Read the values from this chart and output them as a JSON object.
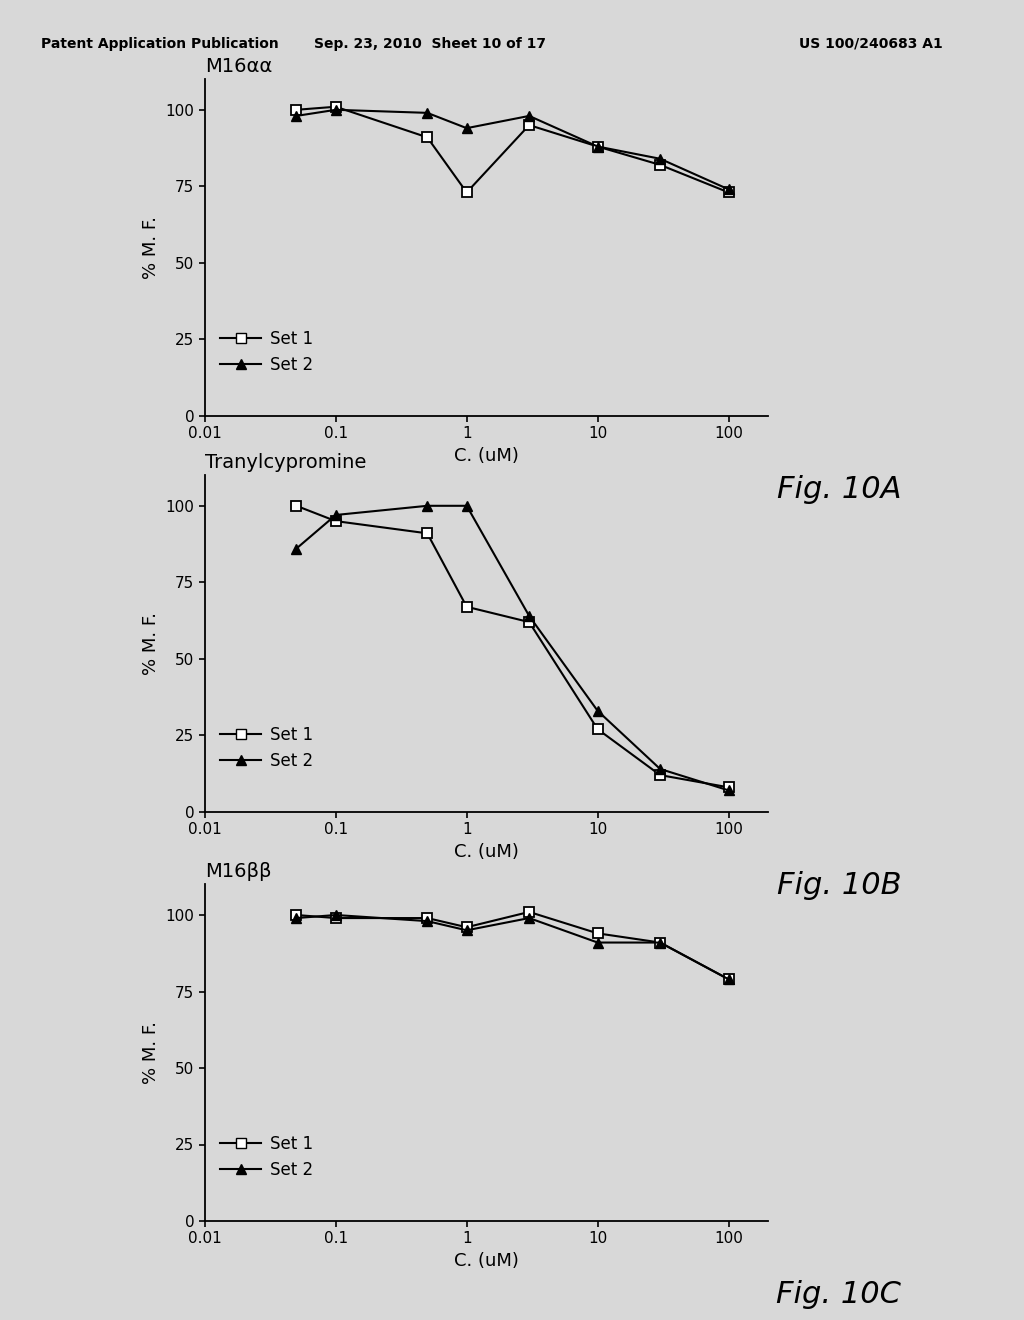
{
  "background_color": "#d8d8d8",
  "chartA": {
    "title": "M16αα",
    "xlabel": "C. (uM)",
    "ylabel": "% M. F.",
    "fig_label": "Fig. 10A",
    "xlim": [
      0.01,
      200
    ],
    "ylim": [
      0,
      110
    ],
    "yticks": [
      0,
      25,
      50,
      75,
      100
    ],
    "xtick_labels": [
      "0.01",
      "0.1",
      "1",
      "10",
      "100"
    ],
    "xtick_vals": [
      0.01,
      0.1,
      1,
      10,
      100
    ],
    "set1_x": [
      0.05,
      0.1,
      0.5,
      1,
      3,
      10,
      30,
      100
    ],
    "set1_y": [
      100,
      101,
      91,
      73,
      95,
      88,
      82,
      73
    ],
    "set2_x": [
      0.05,
      0.1,
      0.5,
      1,
      3,
      10,
      30,
      100
    ],
    "set2_y": [
      98,
      100,
      99,
      94,
      98,
      88,
      84,
      74
    ]
  },
  "chartB": {
    "title": "Tranylcypromine",
    "xlabel": "C. (uM)",
    "ylabel": "% M. F.",
    "fig_label": "Fig. 10B",
    "xlim": [
      0.01,
      200
    ],
    "ylim": [
      0,
      110
    ],
    "yticks": [
      0,
      25,
      50,
      75,
      100
    ],
    "xtick_labels": [
      "0.01",
      "0.1",
      "1",
      "10",
      "100"
    ],
    "xtick_vals": [
      0.01,
      0.1,
      1,
      10,
      100
    ],
    "set1_x": [
      0.05,
      0.1,
      0.5,
      1,
      3,
      10,
      30,
      100
    ],
    "set1_y": [
      100,
      95,
      91,
      67,
      62,
      27,
      12,
      8
    ],
    "set2_x": [
      0.05,
      0.1,
      0.5,
      1,
      3,
      10,
      30,
      100
    ],
    "set2_y": [
      86,
      97,
      100,
      100,
      64,
      33,
      14,
      7
    ]
  },
  "chartC": {
    "title": "M16ββ",
    "xlabel": "C. (uM)",
    "ylabel": "% M. F.",
    "fig_label": "Fig. 10C",
    "xlim": [
      0.01,
      200
    ],
    "ylim": [
      0,
      110
    ],
    "yticks": [
      0,
      25,
      50,
      75,
      100
    ],
    "xtick_labels": [
      "0.01",
      "0.1",
      "1",
      "10",
      "100"
    ],
    "xtick_vals": [
      0.01,
      0.1,
      1,
      10,
      100
    ],
    "set1_x": [
      0.05,
      0.1,
      0.5,
      1,
      3,
      10,
      30,
      100
    ],
    "set1_y": [
      100,
      99,
      99,
      96,
      101,
      94,
      91,
      79
    ],
    "set2_x": [
      0.05,
      0.1,
      0.5,
      1,
      3,
      10,
      30,
      100
    ],
    "set2_y": [
      99,
      100,
      98,
      95,
      99,
      91,
      91,
      79
    ]
  },
  "line_color": "#000000",
  "marker_size": 7,
  "linewidth": 1.5,
  "header_left": "Patent Application Publication",
  "header_mid": "Sep. 23, 2010  Sheet 10 of 17",
  "header_right": "US 100/240683 A1",
  "header_fontsize": 10,
  "fig_label_fontsize": 22,
  "title_fontsize": 14,
  "axis_label_fontsize": 13,
  "tick_fontsize": 11,
  "legend_fontsize": 12
}
